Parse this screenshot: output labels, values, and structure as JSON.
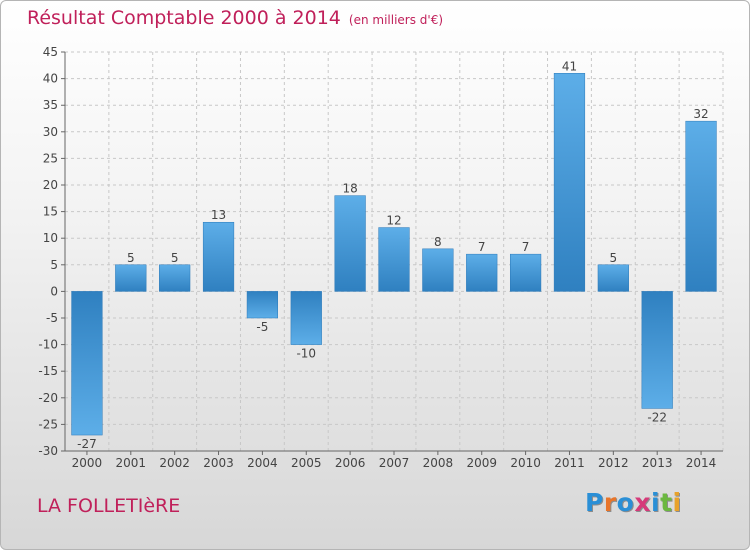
{
  "header": {
    "title": "Résultat Comptable 2000 à 2014",
    "subtitle": "(en milliers d'€)"
  },
  "footer": {
    "commune": "LA FOLLETIèRE",
    "logo_letters": [
      "P",
      "r",
      "o",
      "x",
      "i",
      "t",
      "i"
    ],
    "logo_colors": [
      "#2a8fd6",
      "#e8752a",
      "#2a8fd6",
      "#d63a7a",
      "#2a8fd6",
      "#6cb840",
      "#e8a22a"
    ]
  },
  "chart_data": {
    "type": "bar",
    "title": "Résultat Comptable 2000 à 2014",
    "subtitle": "(en milliers d'€)",
    "categories": [
      "2000",
      "2001",
      "2002",
      "2003",
      "2004",
      "2005",
      "2006",
      "2007",
      "2008",
      "2009",
      "2010",
      "2011",
      "2012",
      "2013",
      "2014"
    ],
    "values": [
      -27,
      5,
      5,
      13,
      -5,
      -10,
      18,
      12,
      8,
      7,
      7,
      41,
      5,
      -22,
      32
    ],
    "labels": [
      "-27",
      "5",
      "5",
      "13",
      "-5",
      "-10",
      "18",
      "12",
      "8",
      "7",
      "7",
      "41",
      "5",
      "-22",
      "32"
    ],
    "ylim": [
      -30,
      45
    ],
    "yticks": [
      -30,
      -25,
      -20,
      -15,
      -10,
      -5,
      0,
      5,
      10,
      15,
      20,
      25,
      30,
      35,
      40,
      45
    ],
    "xlabel": "",
    "ylabel": "",
    "grid": true,
    "bar_color_light": "#5daee8",
    "bar_color_dark": "#2f80c0"
  }
}
